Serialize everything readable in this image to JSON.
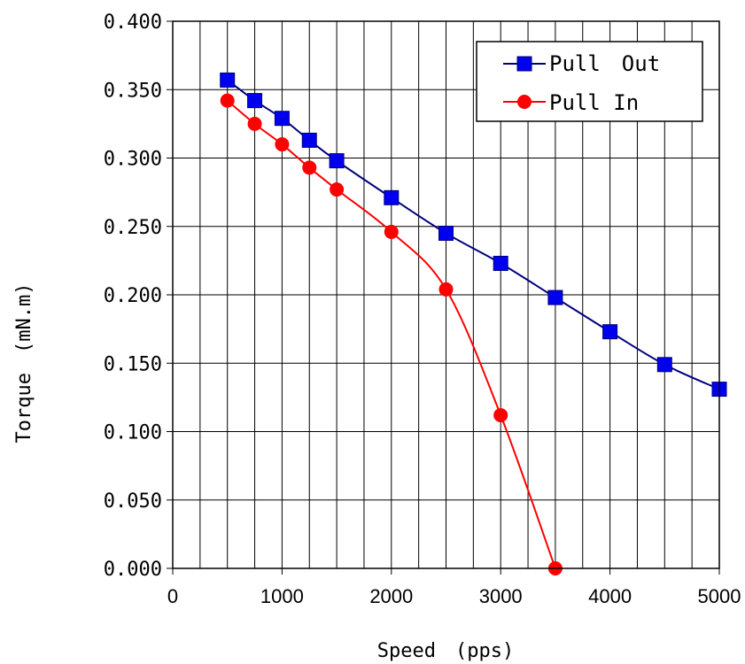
{
  "chart_data": {
    "type": "line",
    "xlabel": "Speed　(pps)",
    "ylabel": "Torque　(mN.m)",
    "xlim": [
      0,
      5000
    ],
    "ylim": [
      0,
      0.4
    ],
    "x_ticks": [
      "0",
      "1000",
      "2000",
      "3000",
      "4000",
      "5000"
    ],
    "y_ticks": [
      "0.000",
      "0.050",
      "0.100",
      "0.150",
      "0.200",
      "0.250",
      "0.300",
      "0.350",
      "0.400"
    ],
    "grid": true,
    "legend_position": "top-right",
    "series": [
      {
        "name": "Pull　Out",
        "color": "#0000ee",
        "line_color": "#000080",
        "marker": "square",
        "x": [
          500,
          750,
          1000,
          1250,
          1500,
          2000,
          2500,
          3000,
          3500,
          4000,
          4500,
          5000
        ],
        "y": [
          0.357,
          0.342,
          0.329,
          0.313,
          0.298,
          0.271,
          0.245,
          0.223,
          0.198,
          0.173,
          0.149,
          0.131
        ]
      },
      {
        "name": "Pull In",
        "color": "#ff0000",
        "line_color": "#ff0000",
        "marker": "circle",
        "x": [
          500,
          750,
          1000,
          1250,
          1500,
          2000,
          2500,
          3000,
          3500
        ],
        "y": [
          0.342,
          0.325,
          0.31,
          0.293,
          0.277,
          0.246,
          0.204,
          0.112,
          0.0
        ]
      }
    ]
  }
}
